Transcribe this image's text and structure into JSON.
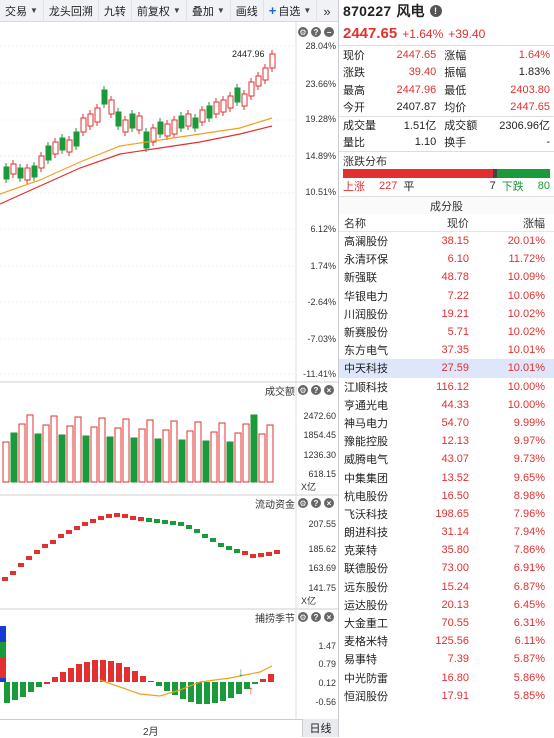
{
  "toolbar": {
    "items": [
      {
        "label": "交易",
        "has_dropdown": true
      },
      {
        "label": "龙头回溯",
        "has_dropdown": false
      },
      {
        "label": "九转",
        "has_dropdown": false
      },
      {
        "label": "前复权",
        "has_dropdown": true
      },
      {
        "label": "叠加",
        "has_dropdown": true
      },
      {
        "label": "画线",
        "has_dropdown": false
      },
      {
        "label": "自选",
        "has_dropdown": true
      }
    ],
    "add_symbol": "+",
    "more_icon": "»"
  },
  "chart": {
    "main_axis": [
      "28.04%",
      "23.66%",
      "19.28%",
      "14.89%",
      "10.51%",
      "6.12%",
      "1.74%",
      "-2.64%",
      "-7.03%",
      "-11.41%"
    ],
    "last_price_label": "2447.96",
    "volume_pane": {
      "title": "成交额",
      "axis": [
        "2472.60",
        "1854.45",
        "1236.30",
        "618.15"
      ],
      "unit": "X亿"
    },
    "flow_pane": {
      "title": "流动资金",
      "axis": [
        "207.55",
        "185.62",
        "163.69",
        "141.75"
      ],
      "unit": "X亿"
    },
    "season_pane": {
      "title": "捕捞季节",
      "axis": [
        "1.47",
        "0.79",
        "0.12",
        "-0.56"
      ]
    },
    "x_label": "2月",
    "period": "日线",
    "up_color": "#e23030",
    "down_color": "#1a9a3a"
  },
  "quote": {
    "code": "870227",
    "name": "风电",
    "price": "2447.65",
    "change_pct": "+1.64%",
    "change": "+39.40",
    "rows": [
      {
        "l1": "现价",
        "v1": "2447.65",
        "c1": "red",
        "l2": "涨幅",
        "v2": "1.64%",
        "c2": "red"
      },
      {
        "l1": "涨跌",
        "v1": "39.40",
        "c1": "red",
        "l2": "振幅",
        "v2": "1.83%",
        "c2": "black"
      },
      {
        "l1": "最高",
        "v1": "2447.96",
        "c1": "red",
        "l2": "最低",
        "v2": "2403.80",
        "c2": "red"
      },
      {
        "l1": "今开",
        "v1": "2407.87",
        "c1": "black",
        "l2": "均价",
        "v2": "2447.65",
        "c2": "red"
      },
      {
        "l1": "成交量",
        "v1": "1.51亿",
        "c1": "black",
        "l2": "成交额",
        "v2": "2306.96亿",
        "c2": "black"
      },
      {
        "l1": "量比",
        "v1": "1.10",
        "c1": "black",
        "l2": "换手",
        "v2": "-",
        "c2": "black"
      }
    ]
  },
  "distribution": {
    "title": "涨跌分布",
    "up_label": "上涨",
    "up": "227",
    "flat_label": "平",
    "flat": "7",
    "down_label": "下跌",
    "down": "80"
  },
  "components": {
    "title": "成分股",
    "cols": [
      "名称",
      "现价",
      "涨幅"
    ],
    "selected_index": 7,
    "rows": [
      {
        "name": "高澜股份",
        "price": "38.15",
        "pct": "20.01%"
      },
      {
        "name": "永清环保",
        "price": "6.10",
        "pct": "11.72%"
      },
      {
        "name": "新强联",
        "price": "48.78",
        "pct": "10.09%"
      },
      {
        "name": "华银电力",
        "price": "7.22",
        "pct": "10.06%"
      },
      {
        "name": "川润股份",
        "price": "19.21",
        "pct": "10.02%"
      },
      {
        "name": "新赛股份",
        "price": "5.71",
        "pct": "10.02%"
      },
      {
        "name": "东方电气",
        "price": "37.35",
        "pct": "10.01%"
      },
      {
        "name": "中天科技",
        "price": "27.59",
        "pct": "10.01%"
      },
      {
        "name": "江顺科技",
        "price": "116.12",
        "pct": "10.00%"
      },
      {
        "name": "亨通光电",
        "price": "44.33",
        "pct": "10.00%"
      },
      {
        "name": "神马电力",
        "price": "54.70",
        "pct": "9.99%"
      },
      {
        "name": "豫能控股",
        "price": "12.13",
        "pct": "9.97%"
      },
      {
        "name": "威腾电气",
        "price": "43.07",
        "pct": "9.73%"
      },
      {
        "name": "中集集团",
        "price": "13.52",
        "pct": "9.65%"
      },
      {
        "name": "杭电股份",
        "price": "16.50",
        "pct": "8.98%"
      },
      {
        "name": "飞沃科技",
        "price": "198.65",
        "pct": "7.96%"
      },
      {
        "name": "朗进科技",
        "price": "31.14",
        "pct": "7.94%"
      },
      {
        "name": "克莱特",
        "price": "35.80",
        "pct": "7.86%"
      },
      {
        "name": "联德股份",
        "price": "73.00",
        "pct": "6.91%"
      },
      {
        "name": "远东股份",
        "price": "15.24",
        "pct": "6.87%"
      },
      {
        "name": "运达股份",
        "price": "20.13",
        "pct": "6.45%"
      },
      {
        "name": "大金重工",
        "price": "70.55",
        "pct": "6.31%"
      },
      {
        "name": "麦格米特",
        "price": "125.56",
        "pct": "6.11%"
      },
      {
        "name": "易事特",
        "price": "7.39",
        "pct": "5.87%"
      },
      {
        "name": "中光防雷",
        "price": "16.80",
        "pct": "5.86%"
      },
      {
        "name": "恒润股份",
        "price": "17.91",
        "pct": "5.85%"
      }
    ]
  }
}
